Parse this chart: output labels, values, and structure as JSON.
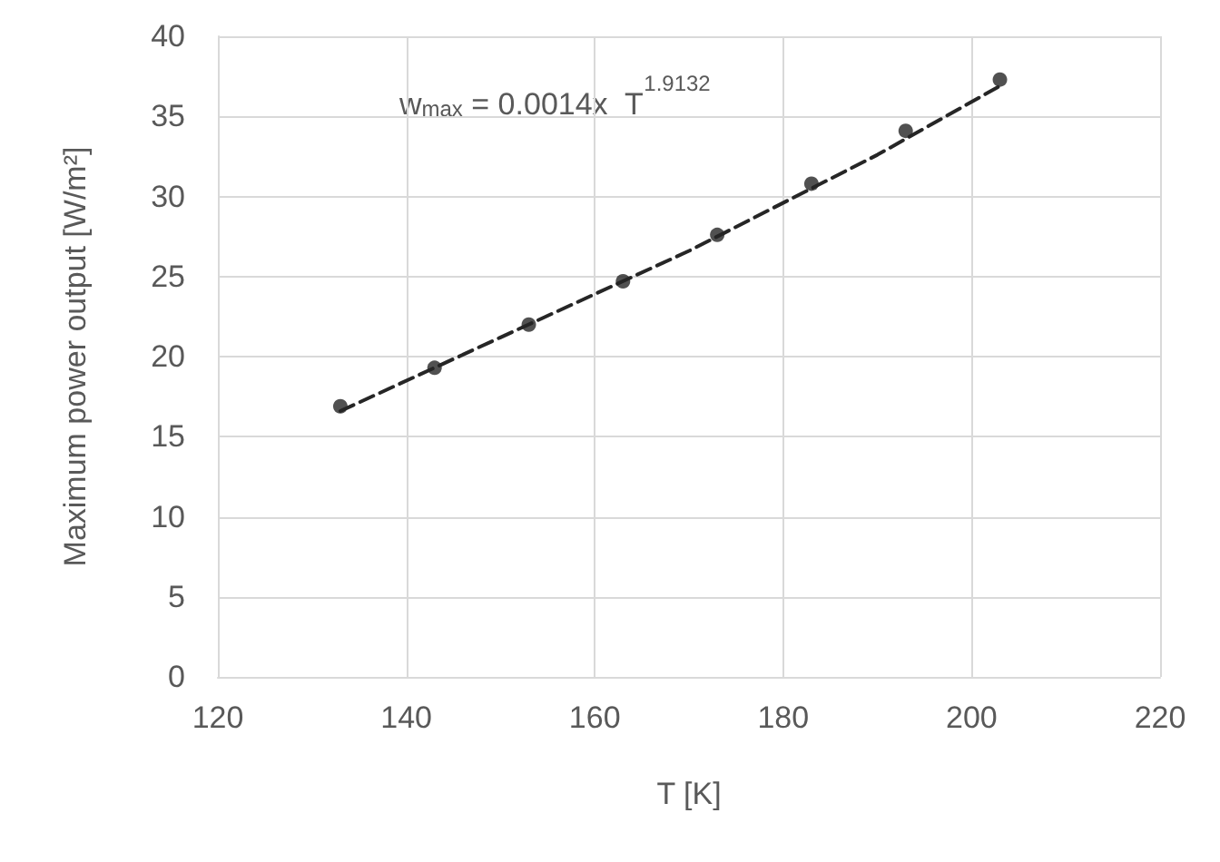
{
  "chart_data": {
    "type": "scatter",
    "xlabel": "T [K]",
    "ylabel": "Maximum power output [W/m²]",
    "annotations": [
      "w$_{max}$ = 0.0014x  T$^{1.9132}$"
    ],
    "xlim": [
      120,
      220
    ],
    "xticks": [
      120,
      140,
      160,
      180,
      200,
      220
    ],
    "ylim": [
      0,
      40
    ],
    "yticks": [
      0,
      5,
      10,
      15,
      20,
      25,
      30,
      35,
      40
    ],
    "grid": true,
    "series": [
      {
        "marker": "circle",
        "color": "#262626",
        "x": [
          133,
          143,
          153,
          163,
          173,
          183,
          193,
          203
        ],
        "values": [
          16.9,
          19.3,
          22.0,
          24.7,
          27.6,
          30.8,
          34.1,
          37.3
        ]
      },
      {
        "type": "line",
        "line_style": "dashed",
        "marker": "none",
        "color": "#262626",
        "x": [
          133,
          150,
          170,
          190,
          203
        ],
        "values": [
          16.6,
          21.2,
          26.6,
          32.6,
          36.9
        ]
      }
    ]
  }
}
